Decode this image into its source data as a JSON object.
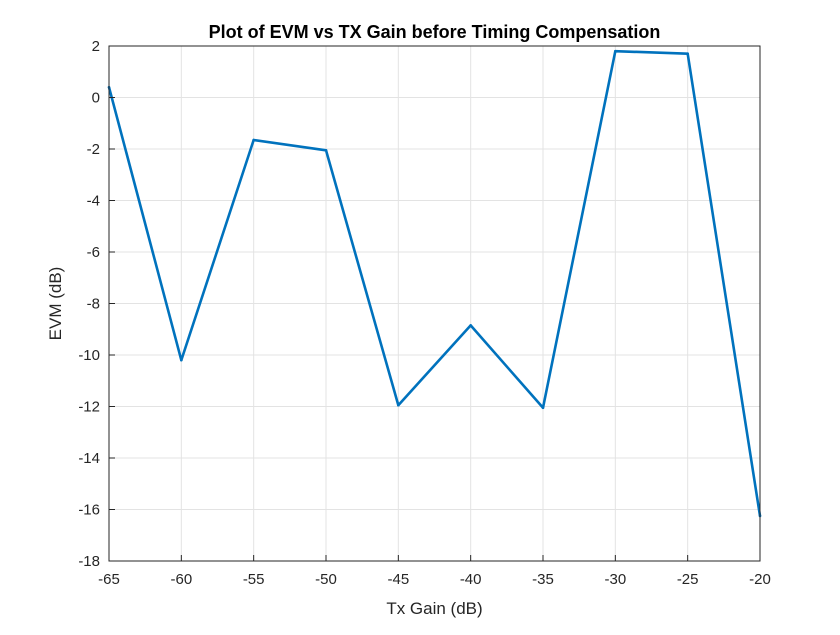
{
  "chart_data": {
    "type": "line",
    "title": "Plot of EVM vs TX Gain before Timing Compensation",
    "xlabel": "Tx Gain (dB)",
    "ylabel": "EVM (dB)",
    "xlim": [
      -65,
      -20
    ],
    "ylim": [
      -18,
      2
    ],
    "xticks": [
      -65,
      -60,
      -55,
      -50,
      -45,
      -40,
      -35,
      -30,
      -25,
      -20
    ],
    "yticks": [
      -18,
      -16,
      -14,
      -12,
      -10,
      -8,
      -6,
      -4,
      -2,
      0,
      2
    ],
    "grid": true,
    "series": [
      {
        "color": "#0072BD",
        "x": [
          -65,
          -60,
          -55,
          -50,
          -45,
          -40,
          -35,
          -30,
          -25,
          -20
        ],
        "y": [
          0.4,
          -10.2,
          -1.65,
          -2.05,
          -11.95,
          -8.85,
          -12.05,
          1.8,
          1.7,
          -16.25
        ]
      }
    ]
  }
}
